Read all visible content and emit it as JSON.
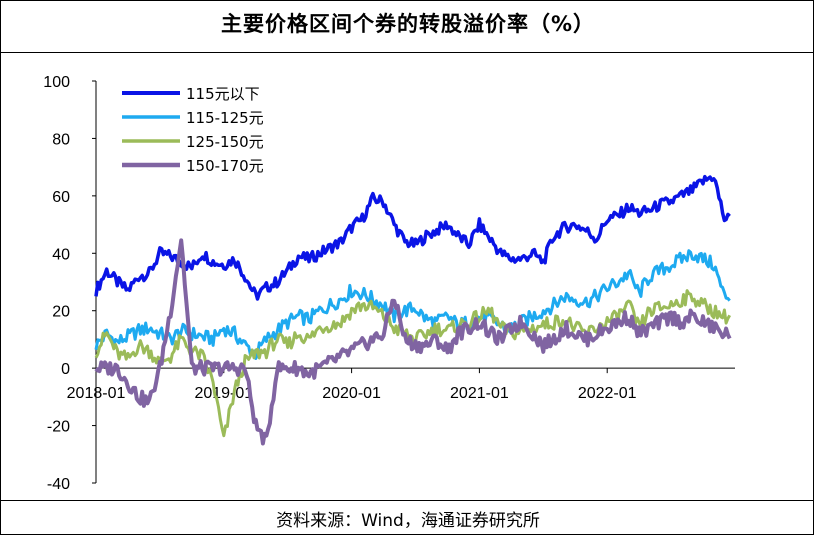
{
  "title": "主要价格区间个券的转股溢价率（%）",
  "source": "资料来源：Wind，海通证券研究所",
  "chart_data": {
    "type": "line",
    "title": "主要价格区间个券的转股溢价率（%）",
    "xlabel": "",
    "ylabel": "",
    "x_range": [
      "2018-01",
      "2022-12"
    ],
    "ylim": [
      -40,
      100
    ],
    "y_ticks": [
      100,
      80,
      60,
      40,
      20,
      0,
      -20,
      -40
    ],
    "x_ticks": [
      "2018-01",
      "2019-01",
      "2020-01",
      "2021-01",
      "2022-01"
    ],
    "grid": false,
    "legend_position": "top-left",
    "series": [
      {
        "name": "115元以下",
        "color": "#0a14e6",
        "width": 3.5,
        "x": [
          "2018-01",
          "2018-02",
          "2018-03",
          "2018-04",
          "2018-05",
          "2018-06",
          "2018-07",
          "2018-08",
          "2018-09",
          "2018-10",
          "2018-11",
          "2018-12",
          "2019-01",
          "2019-02",
          "2019-03",
          "2019-04",
          "2019-05",
          "2019-06",
          "2019-07",
          "2019-08",
          "2019-09",
          "2019-10",
          "2019-11",
          "2019-12",
          "2020-01",
          "2020-02",
          "2020-03",
          "2020-04",
          "2020-05",
          "2020-06",
          "2020-07",
          "2020-08",
          "2020-09",
          "2020-10",
          "2020-11",
          "2020-12",
          "2021-01",
          "2021-02",
          "2021-03",
          "2021-04",
          "2021-05",
          "2021-06",
          "2021-07",
          "2021-08",
          "2021-09",
          "2021-10",
          "2021-11",
          "2021-12",
          "2022-01",
          "2022-02",
          "2022-03",
          "2022-04",
          "2022-05",
          "2022-06",
          "2022-07",
          "2022-08",
          "2022-09",
          "2022-10",
          "2022-11",
          "2022-12"
        ],
        "values": [
          27,
          34,
          30,
          27,
          32,
          33,
          40,
          39,
          37,
          35,
          40,
          37,
          36,
          38,
          32,
          25,
          28,
          30,
          34,
          39,
          38,
          40,
          42,
          44,
          49,
          52,
          59,
          58,
          50,
          44,
          43,
          46,
          48,
          50,
          46,
          43,
          50,
          45,
          40,
          38,
          38,
          40,
          37,
          46,
          49,
          50,
          48,
          45,
          52,
          53,
          56,
          54,
          55,
          57,
          58,
          60,
          62,
          65,
          67,
          52
        ],
        "annotations": []
      },
      {
        "name": "115-125元",
        "color": "#1eaaf0",
        "width": 3,
        "x": [
          "2018-01",
          "2018-02",
          "2018-03",
          "2018-04",
          "2018-05",
          "2018-06",
          "2018-07",
          "2018-08",
          "2018-09",
          "2018-10",
          "2018-11",
          "2018-12",
          "2019-01",
          "2019-02",
          "2019-03",
          "2019-04",
          "2019-05",
          "2019-06",
          "2019-07",
          "2019-08",
          "2019-09",
          "2019-10",
          "2019-11",
          "2019-12",
          "2020-01",
          "2020-02",
          "2020-03",
          "2020-04",
          "2020-05",
          "2020-06",
          "2020-07",
          "2020-08",
          "2020-09",
          "2020-10",
          "2020-11",
          "2020-12",
          "2021-01",
          "2021-02",
          "2021-03",
          "2021-04",
          "2021-05",
          "2021-06",
          "2021-07",
          "2021-08",
          "2021-09",
          "2021-10",
          "2021-11",
          "2021-12",
          "2022-01",
          "2022-02",
          "2022-03",
          "2022-04",
          "2022-05",
          "2022-06",
          "2022-07",
          "2022-08",
          "2022-09",
          "2022-10",
          "2022-11",
          "2022-12"
        ],
        "values": [
          8,
          12,
          9,
          11,
          13,
          14,
          12,
          10,
          13,
          12,
          11,
          10,
          14,
          12,
          8,
          5,
          10,
          13,
          16,
          18,
          17,
          20,
          22,
          24,
          27,
          26,
          24,
          22,
          18,
          20,
          21,
          17,
          16,
          18,
          15,
          16,
          18,
          17,
          15,
          14,
          16,
          18,
          20,
          22,
          25,
          24,
          23,
          25,
          28,
          30,
          33,
          26,
          32,
          34,
          36,
          38,
          40,
          38,
          36,
          25
        ],
        "annotations": []
      },
      {
        "name": "125-150元",
        "color": "#9bbb59",
        "width": 3,
        "x": [
          "2018-01",
          "2018-02",
          "2018-03",
          "2018-04",
          "2018-05",
          "2018-06",
          "2018-07",
          "2018-08",
          "2018-09",
          "2018-10",
          "2018-11",
          "2018-12",
          "2019-01",
          "2019-02",
          "2019-03",
          "2019-04",
          "2019-05",
          "2019-06",
          "2019-07",
          "2019-08",
          "2019-09",
          "2019-10",
          "2019-11",
          "2019-12",
          "2020-01",
          "2020-02",
          "2020-03",
          "2020-04",
          "2020-05",
          "2020-06",
          "2020-07",
          "2020-08",
          "2020-09",
          "2020-10",
          "2020-11",
          "2020-12",
          "2021-01",
          "2021-02",
          "2021-03",
          "2021-04",
          "2021-05",
          "2021-06",
          "2021-07",
          "2021-08",
          "2021-09",
          "2021-10",
          "2021-11",
          "2021-12",
          "2022-01",
          "2022-02",
          "2022-03",
          "2022-04",
          "2022-05",
          "2022-06",
          "2022-07",
          "2022-08",
          "2022-09",
          "2022-10",
          "2022-11",
          "2022-12"
        ],
        "values": [
          6,
          12,
          5,
          3,
          8,
          6,
          2,
          4,
          10,
          6,
          4,
          -5,
          -25,
          -8,
          2,
          5,
          6,
          10,
          8,
          12,
          10,
          14,
          15,
          16,
          20,
          22,
          21,
          18,
          14,
          12,
          10,
          12,
          14,
          13,
          15,
          16,
          18,
          20,
          14,
          12,
          13,
          14,
          15,
          16,
          17,
          14,
          12,
          14,
          16,
          18,
          22,
          14,
          20,
          21,
          22,
          24,
          25,
          22,
          20,
          18
        ],
        "annotations": []
      },
      {
        "name": "150-170元",
        "color": "#8064a2",
        "width": 4,
        "x": [
          "2018-01",
          "2018-02",
          "2018-03",
          "2018-04",
          "2018-05",
          "2018-06",
          "2018-07",
          "2018-08",
          "2018-09",
          "2018-10",
          "2018-11",
          "2018-12",
          "2019-01",
          "2019-02",
          "2019-03",
          "2019-04",
          "2019-05",
          "2019-06",
          "2019-07",
          "2019-08",
          "2019-09",
          "2019-10",
          "2019-11",
          "2019-12",
          "2020-01",
          "2020-02",
          "2020-03",
          "2020-04",
          "2020-05",
          "2020-06",
          "2020-07",
          "2020-08",
          "2020-09",
          "2020-10",
          "2020-11",
          "2020-12",
          "2021-01",
          "2021-02",
          "2021-03",
          "2021-04",
          "2021-05",
          "2021-06",
          "2021-07",
          "2021-08",
          "2021-09",
          "2021-10",
          "2021-11",
          "2021-12",
          "2022-01",
          "2022-02",
          "2022-03",
          "2022-04",
          "2022-05",
          "2022-06",
          "2022-07",
          "2022-08",
          "2022-09",
          "2022-10",
          "2022-11",
          "2022-12"
        ],
        "values": [
          0,
          0,
          0,
          -5,
          -10,
          -12,
          0,
          20,
          45,
          0,
          0,
          0,
          0,
          0,
          0,
          -20,
          -26,
          0,
          0,
          0,
          -2,
          0,
          2,
          4,
          6,
          8,
          10,
          12,
          25,
          10,
          8,
          8,
          10,
          6,
          12,
          14,
          16,
          12,
          10,
          14,
          16,
          12,
          8,
          10,
          14,
          12,
          10,
          12,
          14,
          16,
          18,
          12,
          14,
          16,
          18,
          16,
          18,
          16,
          14,
          12
        ],
        "annotations": []
      }
    ]
  }
}
